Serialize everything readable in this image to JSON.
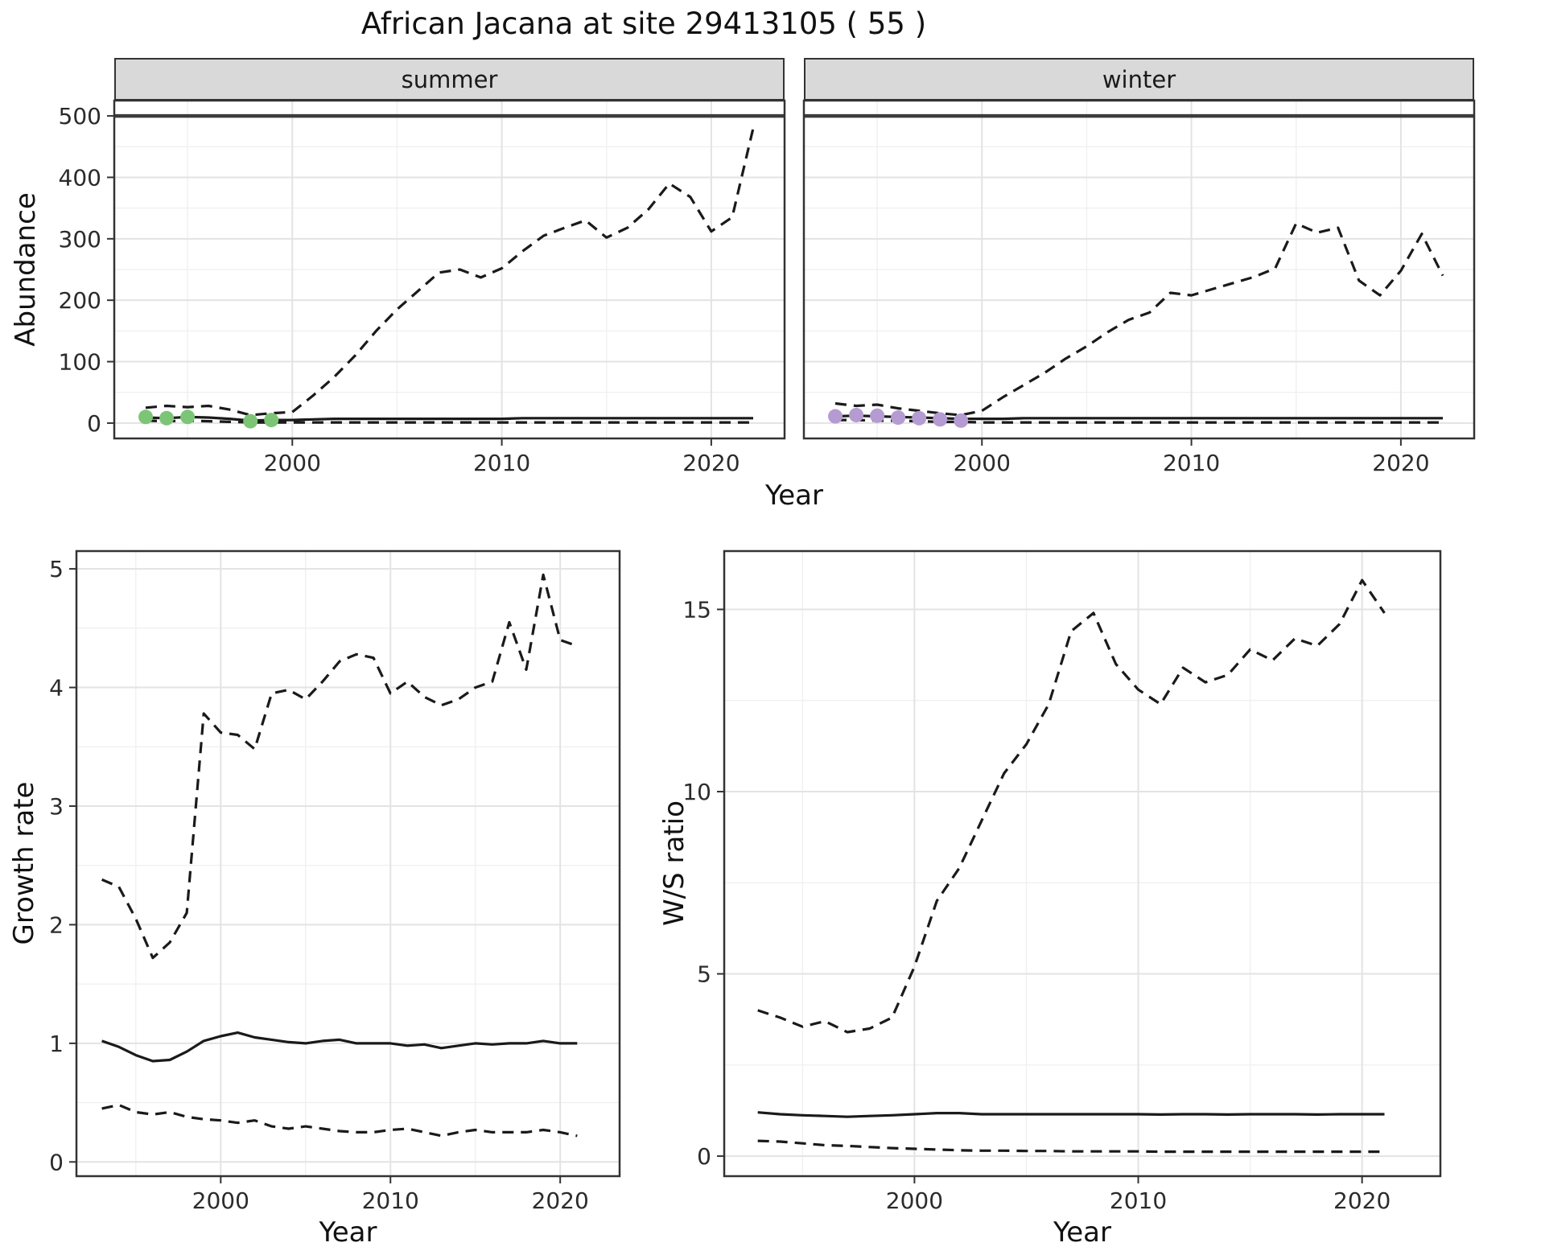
{
  "title": "African Jacana at site 29413105 ( 55 )",
  "colors": {
    "summer_points": "#7cc576",
    "winter_points": "#b49bd2",
    "line": "#1a1a1a",
    "strip_bg": "#d9d9d9",
    "grid_major": "#e3e3e3",
    "grid_minor": "#f0f0f0",
    "panel_border": "#333333",
    "hline": "#3c3c3c",
    "tick_text": "#2b2b2b"
  },
  "chart_data": [
    {
      "type": "line",
      "xlabel": "Year",
      "ylabel": "Abundance",
      "facets": [
        "summer",
        "winter"
      ],
      "legend": "none",
      "grid": "on",
      "xlim": [
        1991.5,
        2023.5
      ],
      "ylim": [
        -25,
        525
      ],
      "xticks": [
        2000,
        2010,
        2020
      ],
      "xminor": [
        1995,
        2005,
        2015
      ],
      "yticks": [
        0,
        100,
        200,
        300,
        400,
        500
      ],
      "yminor": [
        50,
        150,
        250,
        350,
        450
      ],
      "hline": 500,
      "x": [
        1993,
        1994,
        1995,
        1996,
        1997,
        1998,
        1999,
        2000,
        2001,
        2002,
        2003,
        2004,
        2005,
        2006,
        2007,
        2008,
        2009,
        2010,
        2011,
        2012,
        2013,
        2014,
        2015,
        2016,
        2017,
        2018,
        2019,
        2020,
        2021,
        2022
      ],
      "panels": [
        {
          "facet": "summer",
          "series": [
            {
              "name": "upper-ci",
              "style": "dashed",
              "values": [
                25,
                28,
                26,
                28,
                22,
                13,
                16,
                18,
                45,
                75,
                110,
                150,
                185,
                215,
                245,
                250,
                237,
                252,
                280,
                305,
                318,
                330,
                302,
                318,
                348,
                390,
                368,
                312,
                335,
                480
              ]
            },
            {
              "name": "estimate",
              "style": "solid",
              "values": [
                9,
                8,
                10,
                9,
                7,
                4,
                5,
                5,
                6,
                7,
                7,
                7,
                7,
                7,
                7,
                7,
                7,
                7,
                8,
                8,
                8,
                8,
                8,
                8,
                8,
                8,
                8,
                8,
                8,
                8
              ]
            },
            {
              "name": "lower-ci",
              "style": "dashed",
              "values": [
                4,
                3,
                4,
                3,
                2,
                1,
                1,
                1,
                1,
                1,
                1,
                1,
                1,
                1,
                1,
                1,
                1,
                1,
                1,
                1,
                1,
                1,
                1,
                1,
                1,
                1,
                1,
                1,
                1,
                1
              ]
            }
          ],
          "observed": {
            "x": [
              1993,
              1994,
              1995,
              1998,
              1999
            ],
            "y": [
              10,
              8,
              10,
              3,
              5
            ],
            "color": "#7cc576"
          }
        },
        {
          "facet": "winter",
          "series": [
            {
              "name": "upper-ci",
              "style": "dashed",
              "values": [
                32,
                28,
                30,
                24,
                20,
                16,
                13,
                20,
                42,
                62,
                82,
                105,
                125,
                148,
                168,
                180,
                212,
                208,
                218,
                228,
                238,
                252,
                325,
                310,
                318,
                232,
                208,
                248,
                308,
                240
              ]
            },
            {
              "name": "estimate",
              "style": "solid",
              "values": [
                11,
                12,
                11,
                10,
                9,
                8,
                7,
                7,
                7,
                8,
                8,
                8,
                8,
                8,
                8,
                8,
                8,
                8,
                8,
                8,
                8,
                8,
                8,
                8,
                8,
                8,
                8,
                8,
                8,
                8
              ]
            },
            {
              "name": "lower-ci",
              "style": "dashed",
              "values": [
                5,
                5,
                4,
                4,
                3,
                2,
                2,
                1,
                1,
                1,
                1,
                1,
                1,
                1,
                1,
                1,
                1,
                1,
                1,
                1,
                1,
                1,
                1,
                1,
                1,
                1,
                1,
                1,
                1,
                1
              ]
            }
          ],
          "observed": {
            "x": [
              1993,
              1994,
              1995,
              1996,
              1997,
              1998,
              1999
            ],
            "y": [
              11,
              13,
              12,
              9,
              8,
              6,
              4
            ],
            "color": "#b49bd2"
          }
        }
      ]
    },
    {
      "type": "line",
      "xlabel": "Year",
      "ylabel": "Growth rate",
      "legend": "none",
      "grid": "on",
      "xlim": [
        1991.5,
        2023.5
      ],
      "ylim": [
        -0.12,
        5.15
      ],
      "xticks": [
        2000,
        2010,
        2020
      ],
      "xminor": [
        1995,
        2005,
        2015
      ],
      "yticks": [
        0,
        1,
        2,
        3,
        4,
        5
      ],
      "yminor": [
        0.5,
        1.5,
        2.5,
        3.5,
        4.5
      ],
      "x": [
        1993,
        1994,
        1995,
        1996,
        1997,
        1998,
        1999,
        2000,
        2001,
        2002,
        2003,
        2004,
        2005,
        2006,
        2007,
        2008,
        2009,
        2010,
        2011,
        2012,
        2013,
        2014,
        2015,
        2016,
        2017,
        2018,
        2019,
        2020,
        2021
      ],
      "series": [
        {
          "name": "upper-ci",
          "style": "dashed",
          "values": [
            2.38,
            2.32,
            2.05,
            1.72,
            1.85,
            2.1,
            3.78,
            3.62,
            3.6,
            3.48,
            3.95,
            3.98,
            3.9,
            4.05,
            4.22,
            4.28,
            4.25,
            3.95,
            4.05,
            3.92,
            3.85,
            3.9,
            4.0,
            4.05,
            4.55,
            4.15,
            4.95,
            4.4,
            4.35
          ]
        },
        {
          "name": "estimate",
          "style": "solid",
          "values": [
            1.02,
            0.97,
            0.9,
            0.85,
            0.86,
            0.93,
            1.02,
            1.06,
            1.09,
            1.05,
            1.03,
            1.01,
            1.0,
            1.02,
            1.03,
            1.0,
            1.0,
            1.0,
            0.98,
            0.99,
            0.96,
            0.98,
            1.0,
            0.99,
            1.0,
            1.0,
            1.02,
            1.0,
            1.0
          ]
        },
        {
          "name": "lower-ci",
          "style": "dashed",
          "values": [
            0.45,
            0.48,
            0.42,
            0.4,
            0.42,
            0.38,
            0.36,
            0.35,
            0.33,
            0.35,
            0.3,
            0.28,
            0.3,
            0.28,
            0.26,
            0.25,
            0.25,
            0.27,
            0.28,
            0.25,
            0.22,
            0.25,
            0.27,
            0.25,
            0.25,
            0.25,
            0.27,
            0.25,
            0.22
          ]
        }
      ]
    },
    {
      "type": "line",
      "xlabel": "Year",
      "ylabel": "W/S ratio",
      "legend": "none",
      "grid": "on",
      "xlim": [
        1991.5,
        2023.5
      ],
      "ylim": [
        -0.55,
        16.6
      ],
      "xticks": [
        2000,
        2010,
        2020
      ],
      "xminor": [
        1995,
        2005,
        2015
      ],
      "yticks": [
        0,
        5,
        10,
        15
      ],
      "yminor": [
        2.5,
        7.5,
        12.5
      ],
      "x": [
        1993,
        1994,
        1995,
        1996,
        1997,
        1998,
        1999,
        2000,
        2001,
        2002,
        2003,
        2004,
        2005,
        2006,
        2007,
        2008,
        2009,
        2010,
        2011,
        2012,
        2013,
        2014,
        2015,
        2016,
        2017,
        2018,
        2019,
        2020,
        2021
      ],
      "series": [
        {
          "name": "upper-ci",
          "style": "dashed",
          "values": [
            4.0,
            3.8,
            3.55,
            3.7,
            3.4,
            3.5,
            3.8,
            5.2,
            7.0,
            7.9,
            9.2,
            10.5,
            11.3,
            12.4,
            14.4,
            14.9,
            13.5,
            12.8,
            12.4,
            13.4,
            13.0,
            13.2,
            13.9,
            13.6,
            14.2,
            14.0,
            14.6,
            15.8,
            14.9
          ]
        },
        {
          "name": "estimate",
          "style": "solid",
          "values": [
            1.2,
            1.15,
            1.12,
            1.1,
            1.08,
            1.1,
            1.12,
            1.15,
            1.18,
            1.18,
            1.15,
            1.15,
            1.15,
            1.15,
            1.15,
            1.15,
            1.15,
            1.15,
            1.14,
            1.15,
            1.15,
            1.14,
            1.15,
            1.15,
            1.15,
            1.14,
            1.15,
            1.15,
            1.15
          ]
        },
        {
          "name": "lower-ci",
          "style": "dashed",
          "values": [
            0.42,
            0.4,
            0.35,
            0.3,
            0.28,
            0.25,
            0.22,
            0.2,
            0.18,
            0.16,
            0.15,
            0.15,
            0.14,
            0.14,
            0.13,
            0.13,
            0.13,
            0.13,
            0.12,
            0.12,
            0.12,
            0.12,
            0.12,
            0.12,
            0.12,
            0.12,
            0.12,
            0.12,
            0.12
          ]
        }
      ]
    }
  ]
}
